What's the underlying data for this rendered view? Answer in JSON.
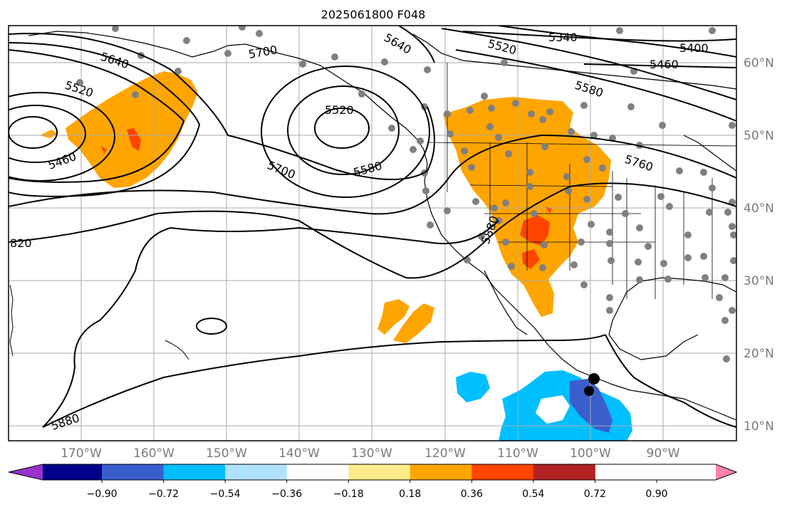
{
  "title": "2025061800 F048",
  "map": {
    "lon_labels": [
      "170°W",
      "160°W",
      "150°W",
      "140°W",
      "130°W",
      "120°W",
      "110°W",
      "100°W",
      "90°W"
    ],
    "lat_labels": [
      "60°N",
      "50°N",
      "40°N",
      "30°N",
      "20°N",
      "10°N"
    ],
    "contour_labels": [
      "5640",
      "5700",
      "5340",
      "5400",
      "5460",
      "5520",
      "5580",
      "5640",
      "5460",
      "5520",
      "5580",
      "5700",
      "5760",
      "5880",
      "820",
      "5880",
      "5520"
    ]
  },
  "colorbar": {
    "ticks": [
      "−0.90",
      "−0.72",
      "−0.54",
      "−0.36",
      "−0.18",
      "0.18",
      "0.36",
      "0.54",
      "0.72",
      "0.90"
    ],
    "colors": [
      "#9932cc",
      "#00008b",
      "#3a5fcd",
      "#00bfff",
      "#b0e2ff",
      "#ffffff",
      "#ffec8b",
      "#ffa500",
      "#ff4500",
      "#b22222",
      "#ff82ab"
    ]
  },
  "colors": {
    "positive_light": "#ffa500",
    "positive_strong": "#ff4500",
    "negative_light": "#00bfff",
    "negative_strong": "#3a5fcd",
    "station_dot": "#808080"
  }
}
